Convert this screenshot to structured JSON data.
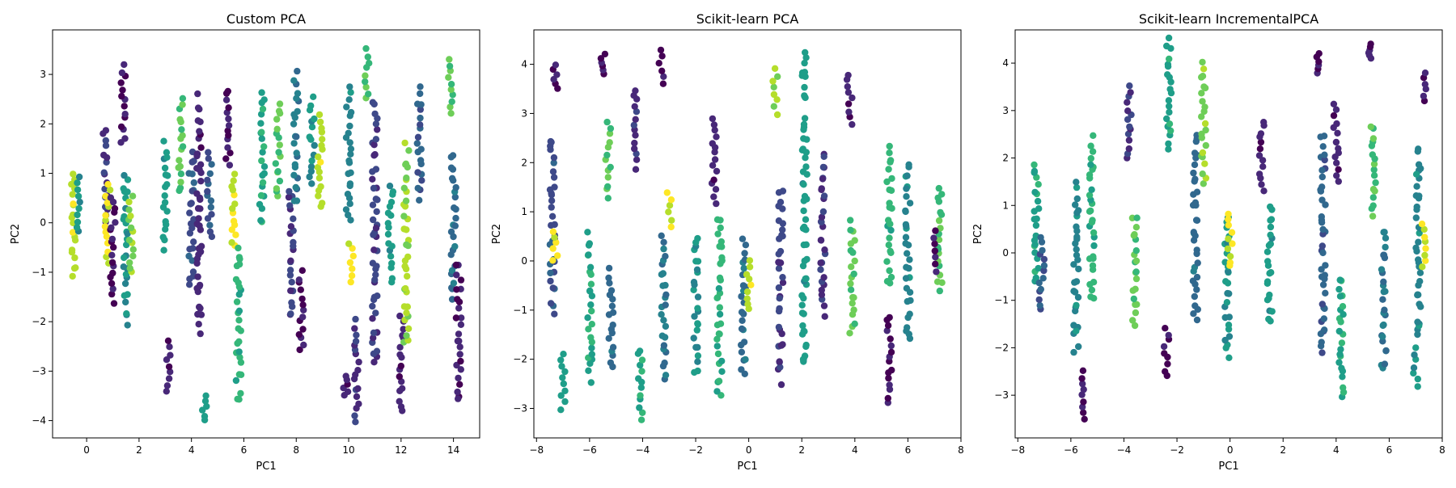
{
  "figure": {
    "background": "#ffffff"
  },
  "chart_data": [
    {
      "type": "scatter",
      "title": "Custom PCA",
      "xlabel": "PC1",
      "ylabel": "PC2",
      "xlim": [
        -1.3,
        15.0
      ],
      "ylim": [
        -4.35,
        3.9
      ],
      "xticks": [
        0,
        2,
        4,
        6,
        8,
        10,
        12,
        14
      ],
      "yticks": [
        -4,
        -3,
        -2,
        -1,
        0,
        1,
        2,
        3
      ],
      "colormap": "viridis",
      "grid": false,
      "legend": "none",
      "clusters": [
        {
          "x": -0.5,
          "y": [
            -1.1,
            1.0
          ],
          "c": 0.9
        },
        {
          "x": -0.3,
          "y": [
            -0.2,
            0.9
          ],
          "c": 0.55
        },
        {
          "x": 0.7,
          "y": [
            0.0,
            1.9
          ],
          "c": 0.15
        },
        {
          "x": 0.8,
          "y": [
            -0.8,
            0.8
          ],
          "c": 0.95
        },
        {
          "x": 1.0,
          "y": [
            -1.6,
            0.5
          ],
          "c": 0.05
        },
        {
          "x": 1.4,
          "y": [
            1.6,
            3.2
          ],
          "c": 0.05
        },
        {
          "x": 1.5,
          "y": [
            -2.0,
            1.0
          ],
          "c": 0.5
        },
        {
          "x": 1.7,
          "y": [
            -1.0,
            0.5
          ],
          "c": 0.85
        },
        {
          "x": 3.0,
          "y": [
            -0.5,
            1.6
          ],
          "c": 0.55
        },
        {
          "x": 3.1,
          "y": [
            -3.4,
            -2.4
          ],
          "c": 0.1
        },
        {
          "x": 3.6,
          "y": [
            0.6,
            2.5
          ],
          "c": 0.75
        },
        {
          "x": 4.0,
          "y": [
            -1.3,
            1.4
          ],
          "c": 0.25
        },
        {
          "x": 4.3,
          "y": [
            -2.2,
            2.5
          ],
          "c": 0.1
        },
        {
          "x": 4.5,
          "y": [
            -4.0,
            -3.5
          ],
          "c": 0.6
        },
        {
          "x": 4.7,
          "y": [
            -0.3,
            1.4
          ],
          "c": 0.3
        },
        {
          "x": 5.4,
          "y": [
            1.2,
            2.7
          ],
          "c": 0.05
        },
        {
          "x": 5.6,
          "y": [
            -0.5,
            1.0
          ],
          "c": 0.95
        },
        {
          "x": 5.8,
          "y": [
            -3.6,
            -0.5
          ],
          "c": 0.65
        },
        {
          "x": 6.7,
          "y": [
            0.0,
            2.6
          ],
          "c": 0.6
        },
        {
          "x": 7.3,
          "y": [
            0.5,
            2.4
          ],
          "c": 0.75
        },
        {
          "x": 7.8,
          "y": [
            -1.9,
            0.7
          ],
          "c": 0.2
        },
        {
          "x": 8.0,
          "y": [
            0.4,
            3.0
          ],
          "c": 0.4
        },
        {
          "x": 8.2,
          "y": [
            -2.6,
            -1.0
          ],
          "c": 0.05
        },
        {
          "x": 8.6,
          "y": [
            0.8,
            2.5
          ],
          "c": 0.5
        },
        {
          "x": 8.9,
          "y": [
            0.3,
            2.2
          ],
          "c": 0.9
        },
        {
          "x": 9.9,
          "y": [
            -3.5,
            -3.1
          ],
          "c": 0.1
        },
        {
          "x": 10.0,
          "y": [
            0.0,
            2.7
          ],
          "c": 0.45
        },
        {
          "x": 10.1,
          "y": [
            -1.2,
            -0.4
          ],
          "c": 0.98
        },
        {
          "x": 10.3,
          "y": [
            -4.0,
            -2.0
          ],
          "c": 0.15
        },
        {
          "x": 10.7,
          "y": [
            2.5,
            3.5
          ],
          "c": 0.7
        },
        {
          "x": 11.0,
          "y": [
            -2.9,
            2.4
          ],
          "c": 0.2
        },
        {
          "x": 11.6,
          "y": [
            -1.2,
            0.8
          ],
          "c": 0.55
        },
        {
          "x": 12.0,
          "y": [
            -3.8,
            -1.9
          ],
          "c": 0.1
        },
        {
          "x": 12.2,
          "y": [
            -2.5,
            1.5
          ],
          "c": 0.85
        },
        {
          "x": 12.7,
          "y": [
            0.5,
            2.7
          ],
          "c": 0.3
        },
        {
          "x": 13.9,
          "y": [
            2.2,
            3.3
          ],
          "c": 0.75
        },
        {
          "x": 14.0,
          "y": [
            -1.5,
            1.4
          ],
          "c": 0.35
        },
        {
          "x": 14.2,
          "y": [
            -3.6,
            -0.8
          ],
          "c": 0.05
        }
      ]
    },
    {
      "type": "scatter",
      "title": "Scikit-learn PCA",
      "xlabel": "PC1",
      "ylabel": "PC2",
      "xlim": [
        -8.1,
        8.0
      ],
      "ylim": [
        -3.6,
        4.7
      ],
      "xticks": [
        -8,
        -6,
        -4,
        -2,
        0,
        2,
        4,
        6,
        8
      ],
      "yticks": [
        -3,
        -2,
        -1,
        0,
        1,
        2,
        3,
        4
      ],
      "colormap": "viridis",
      "grid": false,
      "legend": "none",
      "clusters": [
        {
          "x": -7.3,
          "y": [
            3.5,
            4.0
          ],
          "c": 0.05
        },
        {
          "x": -7.4,
          "y": [
            -1.0,
            2.5
          ],
          "c": 0.25
        },
        {
          "x": -7.3,
          "y": [
            0.0,
            0.6
          ],
          "c": 0.95
        },
        {
          "x": -7.0,
          "y": [
            -3.0,
            -1.9
          ],
          "c": 0.55
        },
        {
          "x": -6.0,
          "y": [
            -2.4,
            0.5
          ],
          "c": 0.6
        },
        {
          "x": -5.5,
          "y": [
            3.8,
            4.2
          ],
          "c": 0.05
        },
        {
          "x": -5.3,
          "y": [
            1.3,
            2.8
          ],
          "c": 0.7
        },
        {
          "x": -5.2,
          "y": [
            -2.2,
            -0.2
          ],
          "c": 0.35
        },
        {
          "x": -4.3,
          "y": [
            1.9,
            3.5
          ],
          "c": 0.15
        },
        {
          "x": -4.1,
          "y": [
            -3.2,
            -1.8
          ],
          "c": 0.6
        },
        {
          "x": -3.3,
          "y": [
            3.6,
            4.3
          ],
          "c": 0.05
        },
        {
          "x": -3.2,
          "y": [
            -2.4,
            0.5
          ],
          "c": 0.4
        },
        {
          "x": -3.0,
          "y": [
            0.7,
            1.4
          ],
          "c": 0.95
        },
        {
          "x": -2.0,
          "y": [
            -2.3,
            0.5
          ],
          "c": 0.5
        },
        {
          "x": -1.3,
          "y": [
            1.2,
            2.9
          ],
          "c": 0.1
        },
        {
          "x": -1.1,
          "y": [
            -2.8,
            0.9
          ],
          "c": 0.65
        },
        {
          "x": -0.2,
          "y": [
            -2.3,
            0.4
          ],
          "c": 0.35
        },
        {
          "x": 0.0,
          "y": [
            -1.0,
            0.0
          ],
          "c": 0.9
        },
        {
          "x": 1.0,
          "y": [
            3.0,
            3.9
          ],
          "c": 0.85
        },
        {
          "x": 1.2,
          "y": [
            -2.4,
            1.5
          ],
          "c": 0.2
        },
        {
          "x": 2.1,
          "y": [
            -2.2,
            4.3
          ],
          "c": 0.55
        },
        {
          "x": 2.8,
          "y": [
            -1.1,
            2.2
          ],
          "c": 0.15
        },
        {
          "x": 3.8,
          "y": [
            2.8,
            3.8
          ],
          "c": 0.1
        },
        {
          "x": 3.9,
          "y": [
            -1.5,
            0.8
          ],
          "c": 0.75
        },
        {
          "x": 5.3,
          "y": [
            -2.9,
            -1.1
          ],
          "c": 0.05
        },
        {
          "x": 5.3,
          "y": [
            -0.5,
            2.3
          ],
          "c": 0.65
        },
        {
          "x": 6.0,
          "y": [
            -1.6,
            2.0
          ],
          "c": 0.45
        },
        {
          "x": 7.2,
          "y": [
            -0.6,
            1.5
          ],
          "c": 0.7
        },
        {
          "x": 7.0,
          "y": [
            -0.2,
            0.6
          ],
          "c": 0.05
        }
      ]
    },
    {
      "type": "scatter",
      "title": "Scikit-learn IncrementalPCA",
      "xlabel": "PC1",
      "ylabel": "PC2",
      "xlim": [
        -8.1,
        8.0
      ],
      "ylim": [
        -3.9,
        4.7
      ],
      "xticks": [
        -8,
        -6,
        -4,
        -2,
        0,
        2,
        4,
        6,
        8
      ],
      "yticks": [
        -3,
        -2,
        -1,
        0,
        1,
        2,
        3,
        4
      ],
      "colormap": "viridis",
      "grid": false,
      "legend": "none",
      "clusters": [
        {
          "x": -7.3,
          "y": [
            -0.6,
            1.9
          ],
          "c": 0.6
        },
        {
          "x": -7.1,
          "y": [
            -1.2,
            0.3
          ],
          "c": 0.3
        },
        {
          "x": -5.8,
          "y": [
            -2.0,
            1.4
          ],
          "c": 0.45
        },
        {
          "x": -5.5,
          "y": [
            -3.5,
            -2.5
          ],
          "c": 0.05
        },
        {
          "x": -5.2,
          "y": [
            -1.0,
            2.4
          ],
          "c": 0.65
        },
        {
          "x": -3.8,
          "y": [
            2.0,
            3.5
          ],
          "c": 0.15
        },
        {
          "x": -3.6,
          "y": [
            -1.5,
            0.8
          ],
          "c": 0.75
        },
        {
          "x": -2.4,
          "y": [
            -2.6,
            -1.6
          ],
          "c": 0.05
        },
        {
          "x": -2.3,
          "y": [
            2.2,
            4.5
          ],
          "c": 0.6
        },
        {
          "x": -1.3,
          "y": [
            -1.4,
            2.5
          ],
          "c": 0.35
        },
        {
          "x": -1.0,
          "y": [
            1.5,
            4.0
          ],
          "c": 0.8
        },
        {
          "x": -0.1,
          "y": [
            -2.2,
            0.8
          ],
          "c": 0.5
        },
        {
          "x": 0.0,
          "y": [
            -0.3,
            0.8
          ],
          "c": 0.95
        },
        {
          "x": 1.2,
          "y": [
            1.3,
            2.8
          ],
          "c": 0.1
        },
        {
          "x": 1.5,
          "y": [
            -1.5,
            1.0
          ],
          "c": 0.55
        },
        {
          "x": 3.3,
          "y": [
            3.8,
            4.2
          ],
          "c": 0.05
        },
        {
          "x": 3.5,
          "y": [
            -2.1,
            2.5
          ],
          "c": 0.3
        },
        {
          "x": 4.0,
          "y": [
            1.5,
            3.1
          ],
          "c": 0.1
        },
        {
          "x": 4.2,
          "y": [
            -3.0,
            -0.5
          ],
          "c": 0.6
        },
        {
          "x": 5.3,
          "y": [
            4.1,
            4.4
          ],
          "c": 0.05
        },
        {
          "x": 5.4,
          "y": [
            0.8,
            2.7
          ],
          "c": 0.7
        },
        {
          "x": 5.8,
          "y": [
            -2.5,
            0.5
          ],
          "c": 0.4
        },
        {
          "x": 7.0,
          "y": [
            -2.8,
            -2.0
          ],
          "c": 0.55
        },
        {
          "x": 7.1,
          "y": [
            -1.8,
            2.2
          ],
          "c": 0.45
        },
        {
          "x": 7.3,
          "y": [
            3.2,
            3.8
          ],
          "c": 0.05
        },
        {
          "x": 7.3,
          "y": [
            -0.3,
            0.6
          ],
          "c": 0.95
        }
      ]
    }
  ]
}
